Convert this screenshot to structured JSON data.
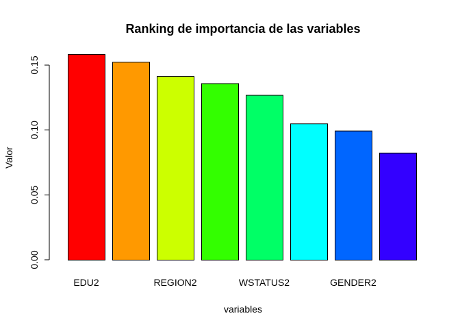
{
  "chart_data": {
    "type": "bar",
    "title": "Ranking de importancia de las variables",
    "xlabel": "variables",
    "ylabel": "Valor",
    "ylim": [
      0,
      0.165
    ],
    "yticks": [
      "0.00",
      "0.05",
      "0.10",
      "0.15"
    ],
    "ytick_values": [
      0,
      0.05,
      0.1,
      0.15
    ],
    "categories": [
      "EDU2",
      "",
      "REGION2",
      "",
      "WSTATUS2",
      "",
      "GENDER2",
      ""
    ],
    "values": [
      0.1585,
      0.1525,
      0.1415,
      0.136,
      0.127,
      0.105,
      0.0995,
      0.0825
    ],
    "colors": [
      "#FF0000",
      "#FF9900",
      "#CCFF00",
      "#33FF00",
      "#00FF66",
      "#00FFFF",
      "#0066FF",
      "#3300FF"
    ],
    "grid": false,
    "legend": "none"
  }
}
